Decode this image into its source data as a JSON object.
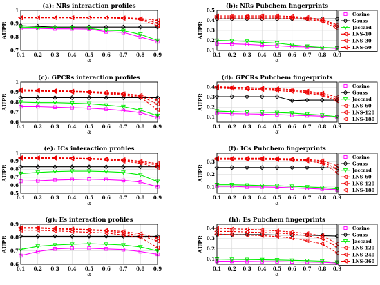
{
  "styles": {
    "Cosine": {
      "color": "#ff00ff",
      "marker": "square",
      "dash": "solid"
    },
    "Gauss": {
      "color": "#000000",
      "marker": "diamond",
      "dash": "solid"
    },
    "Jaccard": {
      "color": "#00ee00",
      "marker": "triangle-down",
      "dash": "solid"
    },
    "LNS-10": {
      "color": "#ee0000",
      "marker": "triangle-left",
      "dash": "dashed"
    },
    "LNS-30": {
      "color": "#ee0000",
      "marker": "triangle-left",
      "dash": "dashed"
    },
    "LNS-50": {
      "color": "#ee0000",
      "marker": "triangle-left",
      "dash": "dashed"
    },
    "LNS-60": {
      "color": "#ee0000",
      "marker": "triangle-left",
      "dash": "dashed"
    },
    "LNS-120": {
      "color": "#ee0000",
      "marker": "triangle-left",
      "dash": "dashed"
    },
    "LNS-180": {
      "color": "#ee0000",
      "marker": "triangle-left",
      "dash": "dashed"
    },
    "LNS-240": {
      "color": "#ee0000",
      "marker": "triangle-left",
      "dash": "dashed"
    },
    "LNS-360": {
      "color": "#ee0000",
      "marker": "triangle-left",
      "dash": "dashed"
    },
    "LNS-interaction": {
      "color": "#ee0000",
      "marker": "triangle-left",
      "dash": "dashed"
    }
  },
  "chart_data": [
    {
      "type": "line",
      "title": "(a): NRs interaction profiles",
      "xlabel": "α",
      "ylabel": "AUPR",
      "x": [
        0.1,
        0.2,
        0.3,
        0.4,
        0.5,
        0.6,
        0.7,
        0.8,
        0.9
      ],
      "xticks": [
        "0.1",
        "0.2",
        "0.3",
        "0.4",
        "0.5",
        "0.6",
        "0.7",
        "0.8",
        "0.9"
      ],
      "ylim": [
        0.7,
        1.0
      ],
      "yticks": [
        "0.7",
        "0.8",
        "0.9",
        "1"
      ],
      "grid": true,
      "legend": false,
      "series": [
        {
          "style": "Cosine",
          "values": [
            0.865,
            0.865,
            0.862,
            0.862,
            0.86,
            0.84,
            0.835,
            0.8,
            0.765
          ]
        },
        {
          "style": "Gauss",
          "values": [
            0.885,
            0.88,
            0.875,
            0.875,
            0.875,
            0.875,
            0.875,
            0.875,
            0.875
          ]
        },
        {
          "style": "Jaccard",
          "values": [
            0.875,
            0.873,
            0.871,
            0.869,
            0.866,
            0.85,
            0.848,
            0.82,
            0.775
          ]
        },
        {
          "style": "LNS-interaction",
          "values": [
            0.945,
            0.945,
            0.945,
            0.945,
            0.945,
            0.945,
            0.94,
            0.93,
            0.885
          ]
        },
        {
          "style": "LNS-interaction",
          "values": [
            0.945,
            0.945,
            0.945,
            0.945,
            0.945,
            0.945,
            0.94,
            0.935,
            0.905
          ]
        },
        {
          "style": "LNS-interaction",
          "values": [
            0.945,
            0.945,
            0.945,
            0.945,
            0.945,
            0.945,
            0.945,
            0.94,
            0.925
          ]
        }
      ]
    },
    {
      "type": "line",
      "title": "(b): NRs Pubchem fingerprints",
      "xlabel": "α",
      "ylabel": "AUPR",
      "x": [
        0.1,
        0.2,
        0.3,
        0.4,
        0.5,
        0.6,
        0.7,
        0.8,
        0.9
      ],
      "xticks": [
        "0.1",
        "0.2",
        "0.3",
        "0.4",
        "0.5",
        "0.6",
        "0.7",
        "0.8",
        "0.9"
      ],
      "ylim": [
        0.1,
        0.5
      ],
      "yticks": [
        "0.1",
        "0.2",
        "0.3",
        "0.4",
        "0.5"
      ],
      "grid": true,
      "legend": true,
      "legend_items": [
        "Cosine",
        "Gauss",
        "Jaccard",
        "LNS-10",
        "LNS-30",
        "LNS-50"
      ],
      "series": [
        {
          "style": "Cosine",
          "values": [
            0.168,
            0.165,
            0.16,
            0.152,
            0.147,
            0.138,
            0.135,
            0.128,
            0.12
          ]
        },
        {
          "style": "Gauss",
          "values": [
            0.415,
            0.415,
            0.415,
            0.415,
            0.415,
            0.415,
            0.415,
            0.415,
            0.415
          ]
        },
        {
          "style": "Jaccard",
          "values": [
            0.2,
            0.195,
            0.19,
            0.18,
            0.172,
            0.155,
            0.14,
            0.13,
            0.125
          ]
        },
        {
          "style": "LNS-10",
          "values": [
            0.425,
            0.425,
            0.425,
            0.425,
            0.425,
            0.42,
            0.41,
            0.39,
            0.32
          ]
        },
        {
          "style": "LNS-30",
          "values": [
            0.435,
            0.435,
            0.435,
            0.435,
            0.435,
            0.43,
            0.42,
            0.4,
            0.34
          ]
        },
        {
          "style": "LNS-50",
          "values": [
            0.445,
            0.445,
            0.445,
            0.445,
            0.445,
            0.44,
            0.43,
            0.41,
            0.355
          ]
        }
      ]
    },
    {
      "type": "line",
      "title": "(c): GPCRs interaction profiles",
      "xlabel": "α",
      "ylabel": "AUPR",
      "x": [
        0.1,
        0.2,
        0.3,
        0.4,
        0.5,
        0.6,
        0.7,
        0.8,
        0.9
      ],
      "xticks": [
        "0.1",
        "0.2",
        "0.3",
        "0.4",
        "0.5",
        "0.6",
        "0.7",
        "0.8",
        "0.9"
      ],
      "ylim": [
        0.6,
        1.0
      ],
      "yticks": [
        "0.6",
        "0.7",
        "0.8",
        "0.9",
        "1"
      ],
      "grid": true,
      "legend": false,
      "series": [
        {
          "style": "Cosine",
          "values": [
            0.755,
            0.755,
            0.75,
            0.745,
            0.74,
            0.73,
            0.715,
            0.695,
            0.645
          ]
        },
        {
          "style": "Gauss",
          "values": [
            0.845,
            0.845,
            0.845,
            0.845,
            0.845,
            0.845,
            0.845,
            0.845,
            0.845
          ]
        },
        {
          "style": "Jaccard",
          "values": [
            0.8,
            0.795,
            0.795,
            0.79,
            0.785,
            0.77,
            0.755,
            0.72,
            0.665
          ]
        },
        {
          "style": "LNS-interaction",
          "values": [
            0.91,
            0.91,
            0.905,
            0.9,
            0.895,
            0.885,
            0.87,
            0.85,
            0.725
          ]
        },
        {
          "style": "LNS-interaction",
          "values": [
            0.92,
            0.915,
            0.91,
            0.905,
            0.9,
            0.89,
            0.88,
            0.86,
            0.78
          ]
        },
        {
          "style": "LNS-interaction",
          "values": [
            0.925,
            0.92,
            0.915,
            0.91,
            0.905,
            0.9,
            0.885,
            0.87,
            0.82
          ]
        }
      ]
    },
    {
      "type": "line",
      "title": "(d): GPCRs Pubchem fingerprints",
      "xlabel": "α",
      "ylabel": "AUPR",
      "x": [
        0.1,
        0.2,
        0.3,
        0.4,
        0.5,
        0.6,
        0.7,
        0.8,
        0.9
      ],
      "xticks": [
        "0.1",
        "0.2",
        "0.3",
        "0.4",
        "0.5",
        "0.6",
        "0.7",
        "0.8",
        "0.9"
      ],
      "ylim": [
        0.05,
        0.45
      ],
      "yticks": [
        "0.1",
        "0.2",
        "0.3",
        "0.4"
      ],
      "grid": true,
      "legend": true,
      "legend_items": [
        "Cosine",
        "Gauss",
        "Jaccard",
        "LNS-60",
        "LNS-120",
        "LNS-180"
      ],
      "series": [
        {
          "style": "Cosine",
          "values": [
            0.14,
            0.135,
            0.133,
            0.13,
            0.125,
            0.12,
            0.115,
            0.11,
            0.098
          ]
        },
        {
          "style": "Gauss",
          "values": [
            0.305,
            0.305,
            0.305,
            0.305,
            0.305,
            0.265,
            0.27,
            0.27,
            0.27
          ]
        },
        {
          "style": "Jaccard",
          "values": [
            0.16,
            0.155,
            0.15,
            0.148,
            0.145,
            0.14,
            0.13,
            0.12,
            0.105
          ]
        },
        {
          "style": "LNS-60",
          "values": [
            0.39,
            0.385,
            0.38,
            0.375,
            0.365,
            0.355,
            0.34,
            0.32,
            0.26
          ]
        },
        {
          "style": "LNS-120",
          "values": [
            0.4,
            0.395,
            0.39,
            0.385,
            0.375,
            0.365,
            0.35,
            0.33,
            0.28
          ]
        },
        {
          "style": "LNS-180",
          "values": [
            0.405,
            0.4,
            0.395,
            0.39,
            0.385,
            0.375,
            0.36,
            0.34,
            0.3
          ]
        }
      ]
    },
    {
      "type": "line",
      "title": "(e): ICs interaction profiles",
      "xlabel": "α",
      "ylabel": "AUPR",
      "x": [
        0.1,
        0.2,
        0.3,
        0.4,
        0.5,
        0.6,
        0.7,
        0.8,
        0.9
      ],
      "xticks": [
        "0.1",
        "0.2",
        "0.3",
        "0.4",
        "0.5",
        "0.6",
        "0.7",
        "0.8",
        "0.9"
      ],
      "ylim": [
        0.5,
        1.0
      ],
      "yticks": [
        "0.5",
        "0.6",
        "0.7",
        "0.8",
        "0.9",
        "1"
      ],
      "grid": true,
      "legend": false,
      "series": [
        {
          "style": "Cosine",
          "values": [
            0.65,
            0.655,
            0.665,
            0.67,
            0.675,
            0.67,
            0.66,
            0.64,
            0.58
          ]
        },
        {
          "style": "Gauss",
          "values": [
            0.83,
            0.83,
            0.83,
            0.83,
            0.83,
            0.83,
            0.83,
            0.83,
            0.83
          ]
        },
        {
          "style": "Jaccard",
          "values": [
            0.745,
            0.76,
            0.77,
            0.775,
            0.775,
            0.77,
            0.76,
            0.73,
            0.645
          ]
        },
        {
          "style": "LNS-interaction",
          "values": [
            0.935,
            0.935,
            0.935,
            0.93,
            0.925,
            0.915,
            0.9,
            0.875,
            0.82
          ]
        },
        {
          "style": "LNS-interaction",
          "values": [
            0.94,
            0.94,
            0.94,
            0.935,
            0.93,
            0.925,
            0.91,
            0.89,
            0.85
          ]
        },
        {
          "style": "LNS-interaction",
          "values": [
            0.945,
            0.945,
            0.945,
            0.94,
            0.935,
            0.93,
            0.92,
            0.9,
            0.87
          ]
        }
      ]
    },
    {
      "type": "line",
      "title": "(f): ICs Pubchem fingerprints",
      "xlabel": "α",
      "ylabel": "AUPR",
      "x": [
        0.1,
        0.2,
        0.3,
        0.4,
        0.5,
        0.6,
        0.7,
        0.8,
        0.9
      ],
      "xticks": [
        "0.1",
        "0.2",
        "0.3",
        "0.4",
        "0.5",
        "0.6",
        "0.7",
        "0.8",
        "0.9"
      ],
      "ylim": [
        0.05,
        0.37
      ],
      "yticks": [
        "0.1",
        "0.2",
        "0.3"
      ],
      "grid": true,
      "legend": true,
      "legend_items": [
        "Cosine",
        "Gauss",
        "Jaccard",
        "LNS-60",
        "LNS-120",
        "LNS-180"
      ],
      "series": [
        {
          "style": "Cosine",
          "values": [
            0.105,
            0.105,
            0.1,
            0.1,
            0.098,
            0.093,
            0.088,
            0.083,
            0.078
          ]
        },
        {
          "style": "Gauss",
          "values": [
            0.255,
            0.255,
            0.255,
            0.255,
            0.255,
            0.255,
            0.255,
            0.255,
            0.25
          ]
        },
        {
          "style": "Jaccard",
          "values": [
            0.118,
            0.118,
            0.115,
            0.112,
            0.11,
            0.105,
            0.1,
            0.095,
            0.085
          ]
        },
        {
          "style": "LNS-60",
          "values": [
            0.32,
            0.32,
            0.32,
            0.32,
            0.318,
            0.315,
            0.308,
            0.29,
            0.215
          ]
        },
        {
          "style": "LNS-120",
          "values": [
            0.325,
            0.325,
            0.325,
            0.325,
            0.322,
            0.32,
            0.315,
            0.3,
            0.245
          ]
        },
        {
          "style": "LNS-180",
          "values": [
            0.33,
            0.33,
            0.33,
            0.33,
            0.328,
            0.325,
            0.32,
            0.31,
            0.27
          ]
        }
      ]
    },
    {
      "type": "line",
      "title": "(g): Es interaction profiles",
      "xlabel": "α",
      "ylabel": "AUPR",
      "x": [
        0.1,
        0.2,
        0.3,
        0.4,
        0.5,
        0.6,
        0.7,
        0.8,
        0.9
      ],
      "xticks": [
        "0.1",
        "0.2",
        "0.3",
        "0.4",
        "0.5",
        "0.6",
        "0.7",
        "0.8",
        "0.9"
      ],
      "ylim": [
        0.6,
        0.9
      ],
      "yticks": [
        "0.6",
        "0.7",
        "0.8",
        "0.9"
      ],
      "grid": true,
      "legend": false,
      "series": [
        {
          "style": "Cosine",
          "values": [
            0.665,
            0.695,
            0.715,
            0.72,
            0.72,
            0.715,
            0.71,
            0.695,
            0.675
          ]
        },
        {
          "style": "Gauss",
          "values": [
            0.81,
            0.81,
            0.81,
            0.81,
            0.81,
            0.81,
            0.81,
            0.81,
            0.81
          ]
        },
        {
          "style": "Jaccard",
          "values": [
            0.71,
            0.735,
            0.745,
            0.75,
            0.755,
            0.75,
            0.745,
            0.73,
            0.7
          ]
        },
        {
          "style": "LNS-interaction",
          "values": [
            0.855,
            0.855,
            0.85,
            0.845,
            0.84,
            0.835,
            0.82,
            0.8,
            0.725
          ]
        },
        {
          "style": "LNS-interaction",
          "values": [
            0.87,
            0.87,
            0.865,
            0.86,
            0.855,
            0.85,
            0.835,
            0.815,
            0.775
          ]
        },
        {
          "style": "LNS-interaction",
          "values": [
            0.875,
            0.875,
            0.87,
            0.865,
            0.86,
            0.855,
            0.845,
            0.83,
            0.795
          ]
        }
      ]
    },
    {
      "type": "line",
      "title": "(h): Es Pubchem fingerprints",
      "xlabel": "α",
      "ylabel": "AUPR",
      "x": [
        0.1,
        0.2,
        0.3,
        0.4,
        0.5,
        0.6,
        0.7,
        0.8,
        0.9
      ],
      "xticks": [
        "0.1",
        "0.2",
        "0.3",
        "0.4",
        "0.5",
        "0.6",
        "0.7",
        "0.8",
        "0.9"
      ],
      "ylim": [
        0.05,
        0.44
      ],
      "yticks": [
        "0.1",
        "0.2",
        "0.3",
        "0.4"
      ],
      "grid": true,
      "legend": true,
      "legend_items": [
        "Cosine",
        "Gauss",
        "Jaccard",
        "LNS-120",
        "LNS-240",
        "LNS-360"
      ],
      "series": [
        {
          "style": "Cosine",
          "values": [
            0.08,
            0.08,
            0.078,
            0.077,
            0.076,
            0.074,
            0.072,
            0.07,
            0.062
          ]
        },
        {
          "style": "Gauss",
          "values": [
            0.34,
            0.34,
            0.34,
            0.34,
            0.335,
            0.335,
            0.335,
            0.33,
            0.325
          ]
        },
        {
          "style": "Jaccard",
          "values": [
            0.1,
            0.098,
            0.096,
            0.094,
            0.092,
            0.088,
            0.085,
            0.08,
            0.068
          ]
        },
        {
          "style": "LNS-120",
          "values": [
            0.345,
            0.34,
            0.335,
            0.33,
            0.32,
            0.305,
            0.28,
            0.25,
            0.16
          ]
        },
        {
          "style": "LNS-240",
          "values": [
            0.37,
            0.37,
            0.365,
            0.36,
            0.355,
            0.345,
            0.33,
            0.3,
            0.22
          ]
        },
        {
          "style": "LNS-360",
          "values": [
            0.4,
            0.395,
            0.39,
            0.385,
            0.375,
            0.365,
            0.35,
            0.33,
            0.25
          ]
        }
      ]
    }
  ]
}
